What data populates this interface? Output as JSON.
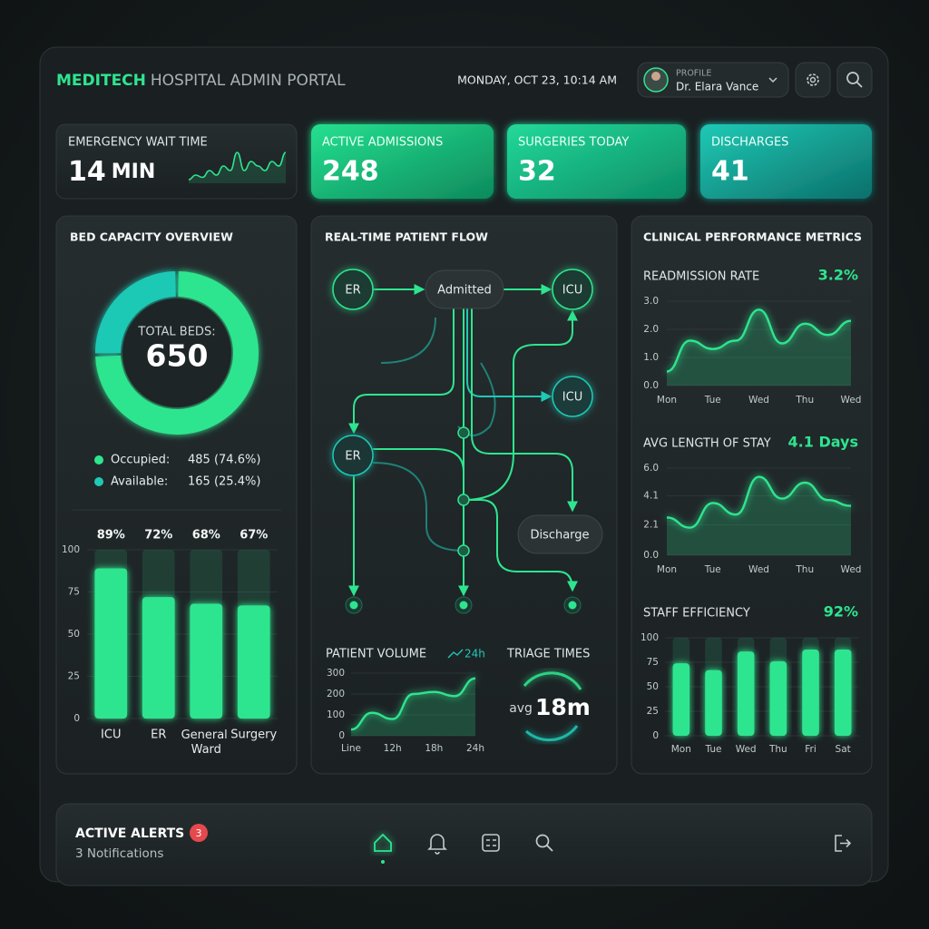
{
  "header": {
    "brand": "MEDITECH",
    "title": "HOSPITAL ADMIN PORTAL",
    "datetime": "MONDAY, OCT 23, 10:14 AM",
    "profile_label": "PROFILE",
    "profile_name": "Dr. Elara Vance"
  },
  "kpis": [
    {
      "label": "EMERGENCY WAIT TIME",
      "value": 14,
      "unit": "MIN",
      "sparkline": [
        3,
        4,
        3.5,
        5,
        4,
        6,
        5,
        9,
        5,
        7,
        6,
        5,
        7,
        6,
        9
      ]
    },
    {
      "label": "ACTIVE ADMISSIONS",
      "value": 248
    },
    {
      "label": "SURGERIES TODAY",
      "value": 32
    },
    {
      "label": "DISCHARGES",
      "value": 41
    }
  ],
  "bed_capacity": {
    "title": "BED CAPACITY OVERVIEW",
    "total_label": "TOTAL BEDS:",
    "total": 650,
    "segments": [
      {
        "name": "Occupied:",
        "value": 485,
        "value_label": "485 (74.6%)",
        "color": "#2ee58f"
      },
      {
        "name": "Available:",
        "value": 165,
        "value_label": "165 (25.4%)",
        "color": "#1fc9b5"
      }
    ]
  },
  "bed_chart": {
    "type": "bar",
    "categories": [
      "ICU",
      "ER",
      "General Ward",
      "Surgery"
    ],
    "values": [
      89,
      72,
      68,
      67
    ],
    "value_labels": [
      "89%",
      "72%",
      "68%",
      "67%"
    ],
    "ylim": [
      0,
      100
    ],
    "yticks": [
      0,
      25,
      50,
      75,
      100
    ],
    "grid": true,
    "color": "#2ee58f"
  },
  "patient_flow": {
    "title": "REAL-TIME PATIENT FLOW",
    "nodes": [
      {
        "label": "ER"
      },
      {
        "label": "Admitted"
      },
      {
        "label": "ICU"
      },
      {
        "label": "ICU"
      },
      {
        "label": "ER"
      },
      {
        "label": "Discharge"
      }
    ]
  },
  "patient_volume": {
    "type": "line",
    "title": "PATIENT VOLUME",
    "badge": "24h",
    "categories": [
      "Line",
      null,
      "12h",
      null,
      "18h",
      null,
      "24h"
    ],
    "values": [
      30,
      110,
      80,
      200,
      210,
      190,
      275
    ],
    "ylim": [
      0,
      300
    ],
    "yticks": [
      0,
      100,
      200,
      300
    ],
    "grid": true,
    "color": "#2ee58f"
  },
  "triage": {
    "title": "TRIAGE TIMES",
    "prefix": "avg",
    "value": "18m"
  },
  "clinical": {
    "title": "CLINICAL PERFORMANCE METRICS",
    "charts": [
      {
        "type": "line",
        "title": "READMISSION RATE",
        "headline": "3.2%",
        "categories": [
          "Mon",
          null,
          "Tue",
          null,
          "Wed",
          null,
          "Thu",
          null,
          "Wed"
        ],
        "values": [
          0.5,
          1.6,
          1.3,
          1.6,
          2.7,
          1.5,
          2.2,
          1.8,
          2.3
        ],
        "ylim": [
          0,
          3
        ],
        "yticks": [
          {
            "value": 0,
            "label": "0.0"
          },
          {
            "value": 1,
            "label": "1.0"
          },
          {
            "value": 2,
            "label": "2.0"
          },
          {
            "value": 3,
            "label": "3.0"
          }
        ],
        "grid": true,
        "color": "#2ee58f"
      },
      {
        "type": "line",
        "title": "AVG LENGTH OF STAY",
        "headline": "4.1 Days",
        "categories": [
          "Mon",
          null,
          "Tue",
          null,
          "Wed",
          null,
          "Thu",
          null,
          "Wed"
        ],
        "values": [
          2.6,
          1.9,
          3.6,
          2.8,
          5.4,
          3.9,
          5.0,
          3.8,
          3.4
        ],
        "ylim": [
          0,
          6
        ],
        "yticks": [
          {
            "value": 0,
            "label": "0.0"
          },
          2.1,
          4.1,
          {
            "value": 6,
            "label": "6.0"
          }
        ],
        "grid": true,
        "color": "#2ee58f"
      },
      {
        "type": "bar",
        "title": "STAFF EFFICIENCY",
        "headline": "92%",
        "categories": [
          "Mon",
          "Tue",
          "Wed",
          "Thu",
          "Fri",
          "Sat"
        ],
        "values": [
          74,
          67,
          86,
          76,
          88,
          88
        ],
        "ylim": [
          0,
          100
        ],
        "yticks": [
          0,
          25,
          50,
          75,
          100
        ],
        "grid": true,
        "color": "#2ee58f"
      }
    ]
  },
  "alerts": {
    "title": "ACTIVE ALERTS",
    "count": 3,
    "subtitle": "3 Notifications"
  }
}
